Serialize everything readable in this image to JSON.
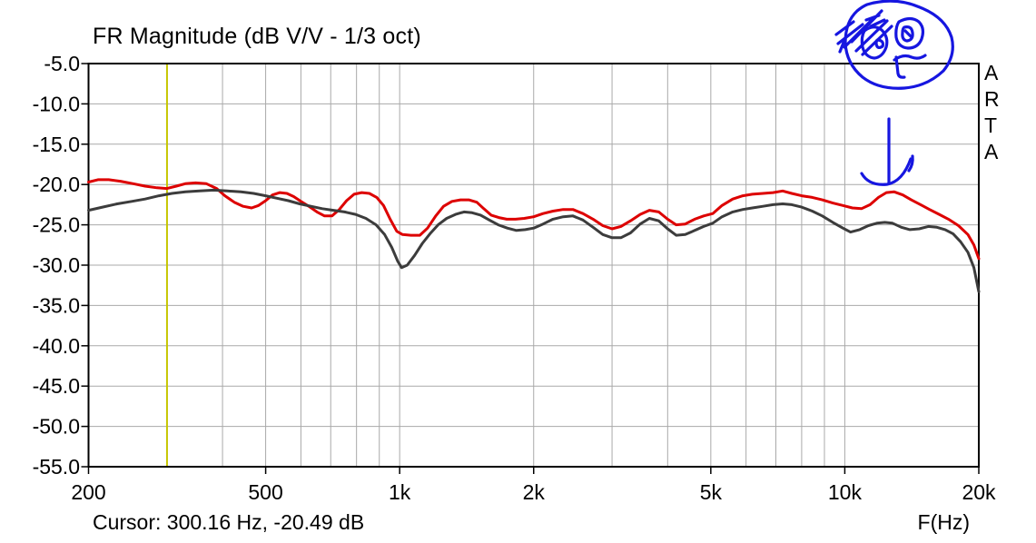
{
  "header": {
    "title": "FR Magnitude (dB V/V - 1/3 oct)"
  },
  "watermark": {
    "text": "ARTA"
  },
  "footer": {
    "cursor_readout": "Cursor: 300.16 Hz, -20.49 dB",
    "x_axis_unit": "F(Hz)"
  },
  "colors": {
    "trace_red": "#dd0000",
    "trace_gray": "#3c3c3c",
    "cursor_line": "#c6c600",
    "grid": "#a9a9a9",
    "border": "#000000",
    "annotation_blue": "#1616e0",
    "background": "#ffffff",
    "text": "#000000"
  },
  "chart_data": {
    "type": "line",
    "title": "FR Magnitude (dB V/V - 1/3 oct)",
    "xlabel": "F(Hz)",
    "ylabel": "dB V/V",
    "x_scale": "log",
    "xlim": [
      200,
      20000
    ],
    "ylim": [
      -55,
      -5
    ],
    "grid": true,
    "y_tick_values": [
      -5,
      -10,
      -15,
      -20,
      -25,
      -30,
      -35,
      -40,
      -45,
      -50,
      -55
    ],
    "y_tick_labels": [
      "-5.0",
      "-10.0",
      "-15.0",
      "-20.0",
      "-25.0",
      "-30.0",
      "-35.0",
      "-40.0",
      "-45.0",
      "-50.0",
      "-55.0"
    ],
    "x_tick_values": [
      200,
      500,
      1000,
      2000,
      5000,
      10000,
      20000
    ],
    "x_tick_labels": [
      "200",
      "500",
      "1k",
      "2k",
      "5k",
      "10k",
      "20k"
    ],
    "x_gridline_values": [
      300,
      400,
      500,
      600,
      700,
      800,
      900,
      1000,
      2000,
      3000,
      4000,
      5000,
      6000,
      7000,
      8000,
      9000,
      10000
    ],
    "cursor": {
      "hz": 300.16,
      "db": -20.49
    },
    "series": [
      {
        "name": "trace-red",
        "color_key": "trace_red",
        "points": [
          [
            200,
            -19.7
          ],
          [
            210,
            -19.4
          ],
          [
            222,
            -19.4
          ],
          [
            236,
            -19.6
          ],
          [
            252,
            -19.9
          ],
          [
            268,
            -20.2
          ],
          [
            285,
            -20.4
          ],
          [
            300,
            -20.5
          ],
          [
            315,
            -20.2
          ],
          [
            330,
            -19.9
          ],
          [
            348,
            -19.8
          ],
          [
            368,
            -19.9
          ],
          [
            388,
            -20.5
          ],
          [
            405,
            -21.4
          ],
          [
            425,
            -22.2
          ],
          [
            445,
            -22.7
          ],
          [
            465,
            -22.9
          ],
          [
            482,
            -22.6
          ],
          [
            500,
            -22.0
          ],
          [
            518,
            -21.3
          ],
          [
            538,
            -21.0
          ],
          [
            558,
            -21.1
          ],
          [
            578,
            -21.5
          ],
          [
            600,
            -22.1
          ],
          [
            625,
            -22.7
          ],
          [
            652,
            -23.4
          ],
          [
            678,
            -23.9
          ],
          [
            705,
            -23.9
          ],
          [
            732,
            -23.1
          ],
          [
            760,
            -22.0
          ],
          [
            790,
            -21.2
          ],
          [
            822,
            -21.0
          ],
          [
            855,
            -21.1
          ],
          [
            888,
            -21.6
          ],
          [
            920,
            -22.6
          ],
          [
            952,
            -24.3
          ],
          [
            985,
            -25.8
          ],
          [
            1015,
            -26.2
          ],
          [
            1060,
            -26.3
          ],
          [
            1110,
            -26.3
          ],
          [
            1155,
            -25.4
          ],
          [
            1205,
            -23.9
          ],
          [
            1255,
            -22.7
          ],
          [
            1310,
            -22.1
          ],
          [
            1370,
            -21.9
          ],
          [
            1430,
            -21.9
          ],
          [
            1490,
            -22.2
          ],
          [
            1545,
            -23.0
          ],
          [
            1605,
            -23.8
          ],
          [
            1670,
            -24.1
          ],
          [
            1740,
            -24.3
          ],
          [
            1820,
            -24.3
          ],
          [
            1905,
            -24.2
          ],
          [
            2000,
            -24.0
          ],
          [
            2100,
            -23.6
          ],
          [
            2210,
            -23.3
          ],
          [
            2330,
            -23.1
          ],
          [
            2450,
            -23.1
          ],
          [
            2580,
            -23.6
          ],
          [
            2720,
            -24.3
          ],
          [
            2860,
            -25.1
          ],
          [
            3000,
            -25.5
          ],
          [
            3140,
            -25.2
          ],
          [
            3300,
            -24.5
          ],
          [
            3470,
            -23.7
          ],
          [
            3640,
            -23.2
          ],
          [
            3820,
            -23.4
          ],
          [
            4000,
            -24.3
          ],
          [
            4180,
            -25.0
          ],
          [
            4380,
            -24.9
          ],
          [
            4600,
            -24.3
          ],
          [
            4820,
            -23.9
          ],
          [
            5050,
            -23.6
          ],
          [
            5300,
            -22.6
          ],
          [
            5600,
            -21.8
          ],
          [
            5900,
            -21.4
          ],
          [
            6200,
            -21.2
          ],
          [
            6550,
            -21.1
          ],
          [
            6900,
            -21.0
          ],
          [
            7250,
            -20.8
          ],
          [
            7600,
            -21.1
          ],
          [
            8000,
            -21.4
          ],
          [
            8450,
            -21.6
          ],
          [
            8900,
            -21.9
          ],
          [
            9400,
            -22.3
          ],
          [
            9900,
            -22.6
          ],
          [
            10400,
            -22.9
          ],
          [
            10900,
            -23.0
          ],
          [
            11400,
            -22.5
          ],
          [
            11900,
            -21.6
          ],
          [
            12400,
            -21.0
          ],
          [
            12900,
            -20.9
          ],
          [
            13500,
            -21.3
          ],
          [
            14100,
            -21.9
          ],
          [
            14800,
            -22.5
          ],
          [
            15500,
            -23.1
          ],
          [
            16300,
            -23.7
          ],
          [
            17100,
            -24.3
          ],
          [
            18000,
            -25.1
          ],
          [
            18900,
            -26.2
          ],
          [
            19500,
            -27.5
          ],
          [
            20000,
            -29.2
          ]
        ]
      },
      {
        "name": "trace-gray",
        "color_key": "trace_gray",
        "points": [
          [
            200,
            -23.2
          ],
          [
            215,
            -22.8
          ],
          [
            232,
            -22.4
          ],
          [
            250,
            -22.1
          ],
          [
            268,
            -21.8
          ],
          [
            288,
            -21.4
          ],
          [
            308,
            -21.1
          ],
          [
            330,
            -20.9
          ],
          [
            355,
            -20.8
          ],
          [
            382,
            -20.7
          ],
          [
            410,
            -20.8
          ],
          [
            440,
            -20.9
          ],
          [
            470,
            -21.1
          ],
          [
            500,
            -21.4
          ],
          [
            530,
            -21.7
          ],
          [
            562,
            -22.0
          ],
          [
            596,
            -22.4
          ],
          [
            632,
            -22.7
          ],
          [
            670,
            -23.0
          ],
          [
            710,
            -23.2
          ],
          [
            752,
            -23.4
          ],
          [
            796,
            -23.7
          ],
          [
            840,
            -24.2
          ],
          [
            885,
            -25.0
          ],
          [
            925,
            -26.2
          ],
          [
            960,
            -27.8
          ],
          [
            990,
            -29.5
          ],
          [
            1010,
            -30.3
          ],
          [
            1040,
            -30.0
          ],
          [
            1080,
            -28.8
          ],
          [
            1125,
            -27.3
          ],
          [
            1170,
            -26.1
          ],
          [
            1220,
            -25.0
          ],
          [
            1275,
            -24.2
          ],
          [
            1335,
            -23.7
          ],
          [
            1395,
            -23.4
          ],
          [
            1455,
            -23.5
          ],
          [
            1520,
            -23.8
          ],
          [
            1590,
            -24.4
          ],
          [
            1665,
            -25.0
          ],
          [
            1745,
            -25.4
          ],
          [
            1830,
            -25.7
          ],
          [
            1915,
            -25.6
          ],
          [
            2000,
            -25.4
          ],
          [
            2100,
            -24.9
          ],
          [
            2210,
            -24.3
          ],
          [
            2330,
            -24.0
          ],
          [
            2450,
            -23.9
          ],
          [
            2580,
            -24.4
          ],
          [
            2720,
            -25.3
          ],
          [
            2860,
            -26.2
          ],
          [
            3000,
            -26.6
          ],
          [
            3140,
            -26.6
          ],
          [
            3300,
            -26.0
          ],
          [
            3470,
            -24.9
          ],
          [
            3640,
            -24.2
          ],
          [
            3820,
            -24.5
          ],
          [
            4000,
            -25.5
          ],
          [
            4180,
            -26.3
          ],
          [
            4380,
            -26.2
          ],
          [
            4600,
            -25.7
          ],
          [
            4820,
            -25.2
          ],
          [
            5050,
            -24.8
          ],
          [
            5300,
            -24.0
          ],
          [
            5600,
            -23.4
          ],
          [
            5900,
            -23.1
          ],
          [
            6200,
            -22.9
          ],
          [
            6550,
            -22.7
          ],
          [
            6900,
            -22.5
          ],
          [
            7250,
            -22.4
          ],
          [
            7600,
            -22.5
          ],
          [
            8000,
            -22.8
          ],
          [
            8450,
            -23.3
          ],
          [
            8900,
            -23.9
          ],
          [
            9400,
            -24.7
          ],
          [
            9900,
            -25.4
          ],
          [
            10300,
            -25.9
          ],
          [
            10800,
            -25.6
          ],
          [
            11300,
            -25.1
          ],
          [
            11800,
            -24.8
          ],
          [
            12300,
            -24.7
          ],
          [
            12800,
            -24.8
          ],
          [
            13400,
            -25.3
          ],
          [
            14000,
            -25.6
          ],
          [
            14700,
            -25.5
          ],
          [
            15400,
            -25.2
          ],
          [
            16100,
            -25.3
          ],
          [
            16800,
            -25.6
          ],
          [
            17500,
            -26.1
          ],
          [
            18200,
            -27.1
          ],
          [
            18900,
            -28.4
          ],
          [
            19500,
            -30.3
          ],
          [
            20000,
            -33.3
          ]
        ]
      }
    ]
  },
  "annotations": {
    "face_doodle": "hand-drawn worried face",
    "down_arrow": "hand-drawn arrow pointing down at the 12.5k response peak"
  }
}
